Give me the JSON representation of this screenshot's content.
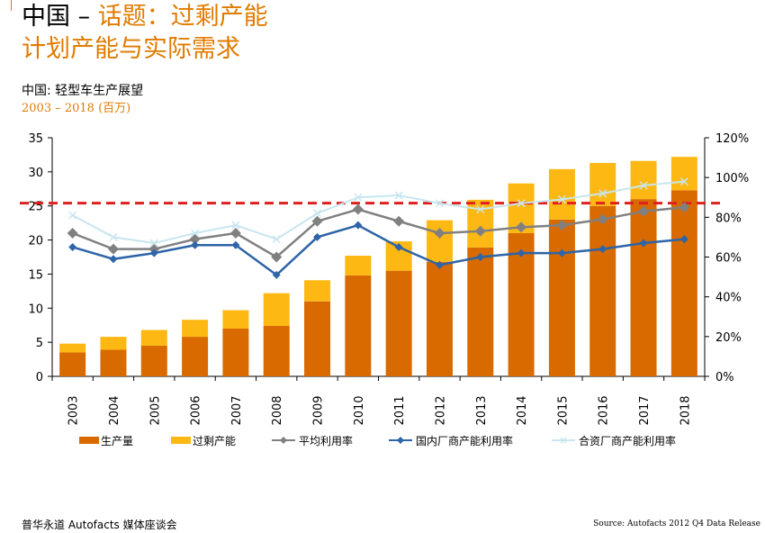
{
  "header": {
    "title_prefix": "中国 – ",
    "title_topic": "话题：",
    "title_rest": "过剩产能",
    "title_line2": "计划产能与实际需求",
    "subtitle": "中国: 轻型车生产展望",
    "subtitle_sub": "2003 – 2018 (百万)"
  },
  "footer": {
    "left": "普华永道 Autofacts 媒体座谈会",
    "right": "Source: Autofacts 2012 Q4 Data Release"
  },
  "colors": {
    "production": "#d86a00",
    "overcapacity": "#fdb813",
    "avg_util": "#808080",
    "domestic_util": "#2e64a8",
    "jv_util": "#c8e6ee",
    "dashed_line": "#e02020",
    "accent_text": "#e07b00"
  },
  "chart_data": {
    "type": "bar",
    "stacked": true,
    "categories": [
      "2003",
      "2004",
      "2005",
      "2006",
      "2007",
      "2008",
      "2009",
      "2010",
      "2011",
      "2012",
      "2013",
      "2014",
      "2015",
      "2016",
      "2017",
      "2018"
    ],
    "ylim_left": [
      0,
      35
    ],
    "yticks_left": [
      "0",
      "5",
      "10",
      "15",
      "20",
      "25",
      "30",
      "35"
    ],
    "ylim_right": [
      0,
      120
    ],
    "yticks_right": [
      "0%",
      "20%",
      "40%",
      "60%",
      "80%",
      "100%",
      "120%"
    ],
    "bar_series": [
      {
        "name": "生产量",
        "values": [
          3.5,
          3.9,
          4.5,
          5.8,
          7.0,
          7.4,
          11.0,
          14.8,
          15.5,
          16.8,
          18.9,
          21.0,
          23.0,
          25.0,
          26.0,
          27.3
        ]
      },
      {
        "name": "过剩产能",
        "values": [
          1.3,
          1.9,
          2.3,
          2.5,
          2.7,
          4.8,
          3.1,
          2.9,
          4.3,
          6.1,
          7.0,
          7.3,
          7.4,
          6.3,
          5.6,
          4.9
        ]
      }
    ],
    "line_series": [
      {
        "name": "平均利用率",
        "axis": "right",
        "marker": "diamond",
        "values": [
          72,
          64,
          64,
          69,
          72,
          60,
          78,
          84,
          78,
          72,
          73,
          75,
          76,
          79,
          83,
          85
        ]
      },
      {
        "name": "国内厂商产能利用率",
        "axis": "right",
        "marker": "diamond",
        "values": [
          65,
          59,
          62,
          66,
          66,
          51,
          70,
          76,
          65,
          56,
          60,
          62,
          62,
          64,
          67,
          69
        ]
      },
      {
        "name": "合资厂商产能利用率",
        "axis": "right",
        "marker": "cross",
        "values": [
          81,
          70,
          67,
          72,
          76,
          69,
          82,
          90,
          91,
          87,
          84,
          87,
          89,
          92,
          96,
          98
        ]
      }
    ],
    "reference_line_left": 25.4,
    "grid": false,
    "legend_position": "bottom"
  }
}
